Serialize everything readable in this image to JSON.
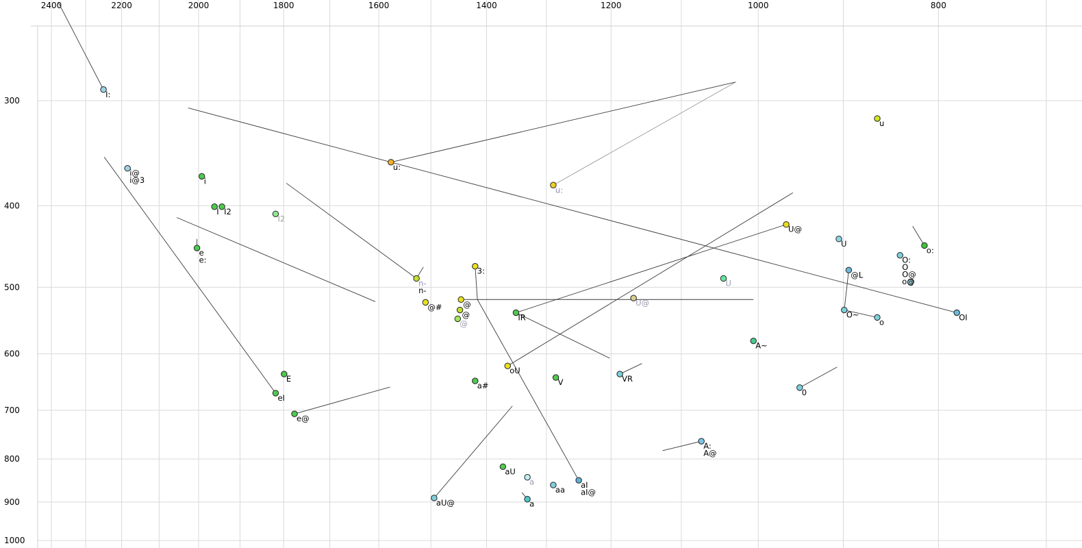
{
  "chart_data": {
    "type": "scatter",
    "title": "",
    "xlabel": "",
    "ylabel": "",
    "x_axis": {
      "scale": "log",
      "reversed": true,
      "range": [
        2450,
        690
      ],
      "tick_labels": [
        2400,
        2200,
        2000,
        1800,
        1600,
        1400,
        1200,
        1000,
        800
      ],
      "grid_lines": [
        2400,
        2300,
        2200,
        2100,
        2000,
        1900,
        1800,
        1700,
        1600,
        1500,
        1400,
        1300,
        1200,
        1100,
        1000,
        900,
        800,
        700
      ]
    },
    "y_axis": {
      "scale": "log",
      "reversed": true,
      "range": [
        245,
        1010
      ],
      "tick_labels": [
        300,
        400,
        500,
        600,
        700,
        800,
        900,
        1000
      ],
      "grid_lines": [
        300,
        400,
        500,
        600,
        700,
        800,
        900,
        1000
      ]
    },
    "points": [
      {
        "t": [
          "I:"
        ],
        "f2": 2250,
        "f1": 291,
        "c": "#9fd2e8"
      },
      {
        "t": [
          "i@",
          "i@3"
        ],
        "f2": 2184,
        "f1": 361,
        "c": "#9fd2e8"
      },
      {
        "t": [
          "i"
        ],
        "f2": 1992,
        "f1": 369,
        "c": "#4fc94f"
      },
      {
        "t": [
          "I"
        ],
        "f2": 1961,
        "f1": 401,
        "c": "#4fc94f"
      },
      {
        "t": [
          "I2"
        ],
        "f2": 1943,
        "f1": 401,
        "c": "#4fc94f"
      },
      {
        "t": [
          "I2"
        ],
        "f2": 1818,
        "f1": 409,
        "c": "#8fe88f",
        "lc": "#9aa89a"
      },
      {
        "t": [
          "e",
          "e:"
        ],
        "f2": 2004,
        "f1": 449,
        "c": "#4fc94f"
      },
      {
        "t": [
          "u:"
        ],
        "f2": 1576,
        "f1": 355,
        "c": "#f2b129"
      },
      {
        "t": [
          "u:"
        ],
        "f2": 1289,
        "f1": 378,
        "c": "#f0d028",
        "lc": "#8f8fb8"
      },
      {
        "t": [
          "u"
        ],
        "f2": 863,
        "f1": 315,
        "c": "#cfe823"
      },
      {
        "t": [
          "U@"
        ],
        "f2": 966,
        "f1": 421,
        "c": "#e8e020"
      },
      {
        "t": [
          "U"
        ],
        "f2": 905,
        "f1": 438,
        "c": "#8fd4e4"
      },
      {
        "t": [
          "o:"
        ],
        "f2": 814,
        "f1": 446,
        "c": "#3fc43f"
      },
      {
        "t": [
          "O:",
          "O",
          "O@",
          "o@"
        ],
        "f2": 839,
        "f1": 458,
        "c": "#7fd0dc"
      },
      {
        "t": [],
        "f2": 828,
        "f1": 493,
        "c": "#a8dce8"
      },
      {
        "t": [
          "@L"
        ],
        "f2": 894,
        "f1": 477,
        "c": "#6fb8dc"
      },
      {
        "t": [
          "U"
        ],
        "f2": 1044,
        "f1": 488,
        "c": "#66e8a0",
        "lc": "#9a9ab0"
      },
      {
        "t": [
          "3:"
        ],
        "f2": 1420,
        "f1": 472,
        "c": "#e8e020"
      },
      {
        "t": [
          "n-",
          "n-"
        ],
        "f2": 1527,
        "f1": 488,
        "c": "#c8e030",
        "lc": [
          "#8f8fb8",
          "#000000"
        ]
      },
      {
        "t": [
          "@#"
        ],
        "f2": 1510,
        "f1": 521,
        "c": "#e8e020"
      },
      {
        "t": [
          "@"
        ],
        "f2": 1445,
        "f1": 517,
        "c": "#e8e020"
      },
      {
        "t": [
          "@"
        ],
        "f2": 1447,
        "f1": 532,
        "c": "#c0e030"
      },
      {
        "t": [
          "@"
        ],
        "f2": 1451,
        "f1": 545,
        "c": "#a0e858",
        "lc": "#9a9ab0"
      },
      {
        "t": [
          "U@"
        ],
        "f2": 1167,
        "f1": 515,
        "c": "#d8d090",
        "lc": "#9a9ab0"
      },
      {
        "t": [
          "IR"
        ],
        "f2": 1350,
        "f1": 536,
        "c": "#4fc94f"
      },
      {
        "t": [
          "O~"
        ],
        "f2": 899,
        "f1": 532,
        "c": "#7fd0dc"
      },
      {
        "t": [
          "o"
        ],
        "f2": 863,
        "f1": 543,
        "c": "#7fd0dc"
      },
      {
        "t": [
          "OI"
        ],
        "f2": 782,
        "f1": 536,
        "c": "#6fb8dc"
      },
      {
        "t": [
          "A~"
        ],
        "f2": 1006,
        "f1": 579,
        "c": "#49c98f"
      },
      {
        "t": [
          "oU"
        ],
        "f2": 1364,
        "f1": 620,
        "c": "#e8e020"
      },
      {
        "t": [
          "V"
        ],
        "f2": 1285,
        "f1": 640,
        "c": "#4fc94f"
      },
      {
        "t": [
          "VR"
        ],
        "f2": 1187,
        "f1": 634,
        "c": "#7fd0dc"
      },
      {
        "t": [
          "a#"
        ],
        "f2": 1420,
        "f1": 646,
        "c": "#4fc94f"
      },
      {
        "t": [
          "E"
        ],
        "f2": 1799,
        "f1": 634,
        "c": "#4fc94f"
      },
      {
        "t": [
          "eI"
        ],
        "f2": 1818,
        "f1": 668,
        "c": "#4fc94f"
      },
      {
        "t": [
          "e@"
        ],
        "f2": 1776,
        "f1": 707,
        "c": "#4fc94f"
      },
      {
        "t": [
          "0"
        ],
        "f2": 950,
        "f1": 658,
        "c": "#7fd0dc"
      },
      {
        "t": [
          "A:",
          "A@"
        ],
        "f2": 1073,
        "f1": 762,
        "c": "#7cc4e8"
      },
      {
        "t": [
          "aU"
        ],
        "f2": 1372,
        "f1": 817,
        "c": "#4fc94f"
      },
      {
        "t": [
          "a"
        ],
        "f2": 1331,
        "f1": 841,
        "c": "#bceef4",
        "lc": "#9a9ab0"
      },
      {
        "t": [
          "aa"
        ],
        "f2": 1289,
        "f1": 859,
        "c": "#7fd0dc"
      },
      {
        "t": [
          "aI",
          "aI@"
        ],
        "f2": 1249,
        "f1": 848,
        "c": "#5fb0d8"
      },
      {
        "t": [
          "aU@"
        ],
        "f2": 1494,
        "f1": 890,
        "c": "#7fd0dc"
      },
      {
        "t": [
          "a"
        ],
        "f2": 1331,
        "f1": 893,
        "c": "#4fc9c9"
      }
    ],
    "segments": [
      {
        "a": [
          2380,
          229
        ],
        "b": [
          2250,
          291
        ]
      },
      {
        "a": [
          2248,
          350
        ],
        "b": [
          1818,
          668
        ]
      },
      {
        "a": [
          2055,
          413
        ],
        "b": [
          1607,
          520
        ]
      },
      {
        "a": [
          1794,
          376
        ],
        "b": [
          1527,
          488
        ]
      },
      {
        "a": [
          2026,
          306
        ],
        "b": [
          1576,
          355
        ]
      },
      {
        "a": [
          1576,
          355
        ],
        "b": [
          1028,
          285
        ]
      },
      {
        "a": [
          1028,
          285
        ],
        "b": [
          1289,
          378
        ],
        "color": "#999999"
      },
      {
        "a": [
          1576,
          355
        ],
        "b": [
          782,
          536
        ]
      },
      {
        "a": [
          1350,
          536
        ],
        "b": [
          966,
          421
        ]
      },
      {
        "a": [
          1350,
          536
        ],
        "b": [
          1202,
          607
        ]
      },
      {
        "a": [
          1364,
          620
        ],
        "b": [
          958,
          386
        ]
      },
      {
        "a": [
          1494,
          890
        ],
        "b": [
          1356,
          692
        ]
      },
      {
        "a": [
          1416,
          517
        ],
        "b": [
          1249,
          848
        ]
      },
      {
        "a": [
          1420,
          472
        ],
        "b": [
          1416,
          517
        ]
      },
      {
        "a": [
          1187,
          634
        ],
        "b": [
          1155,
          616
        ]
      },
      {
        "a": [
          894,
          477
        ],
        "b": [
          899,
          532
        ]
      },
      {
        "a": [
          899,
          532
        ],
        "b": [
          863,
          543
        ]
      },
      {
        "a": [
          826,
          423
        ],
        "b": [
          814,
          446
        ]
      },
      {
        "a": [
          907,
          622
        ],
        "b": [
          950,
          658
        ]
      },
      {
        "a": [
          1126,
          782
        ],
        "b": [
          1073,
          762
        ]
      },
      {
        "a": [
          1340,
          877
        ],
        "b": [
          1331,
          893
        ]
      },
      {
        "a": [
          2004,
          438
        ],
        "b": [
          2004,
          449
        ]
      },
      {
        "a": [
          1776,
          707
        ],
        "b": [
          1578,
          657
        ]
      },
      {
        "a": [
          1439,
          517
        ],
        "b": [
          1006,
          517
        ]
      },
      {
        "a": [
          1527,
          488
        ],
        "b": [
          1514,
          473
        ]
      }
    ],
    "colors": {
      "grid": "#d9d9d9",
      "frame": "#cfcfcf",
      "segment_default": "#3a3a3a",
      "dot_stroke": "#222222",
      "label_default": "#000000",
      "background": "#ffffff"
    }
  }
}
